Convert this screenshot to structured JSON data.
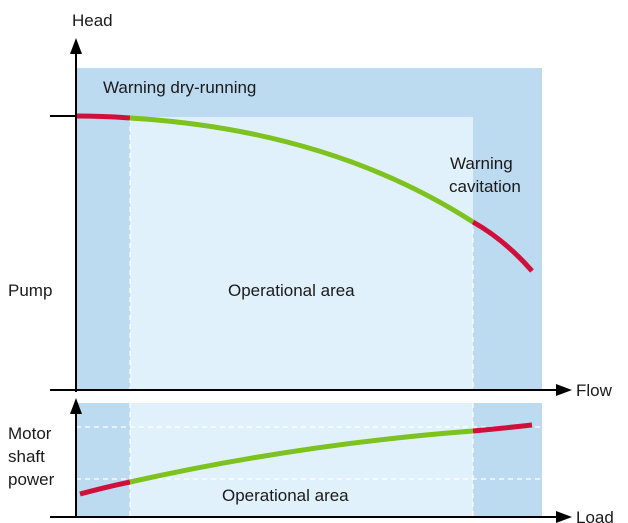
{
  "labels": {
    "head_axis": "Head",
    "flow_axis": "Flow",
    "load_axis": "Load",
    "pump": "Pump",
    "motor_line1": "Motor",
    "motor_line2": "shaft",
    "motor_line3": "power",
    "warning_dry": "Warning dry-running",
    "warning_cav_line1": "Warning",
    "warning_cav_line2": "cavitation",
    "operational_top": "Operational area",
    "operational_bottom": "Operational area"
  },
  "colors": {
    "warning_zone": "#bcdaf0",
    "operational_zone": "#e1f1fb",
    "curve_ok": "#7dc21e",
    "curve_warning": "#d0103a",
    "axis": "#000000",
    "dash": "#ffffff"
  }
}
